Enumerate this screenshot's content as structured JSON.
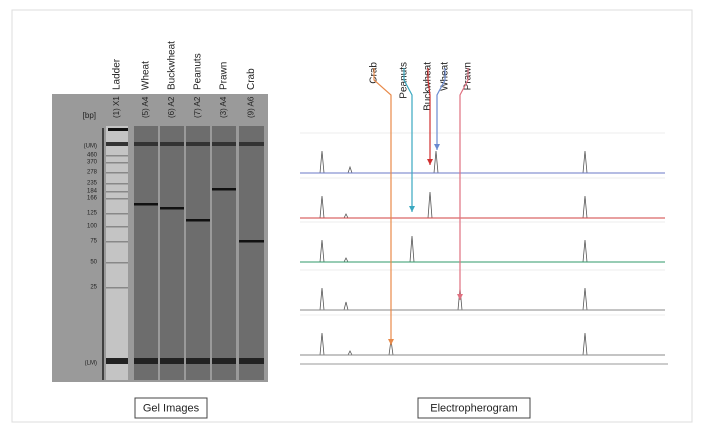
{
  "gel": {
    "unit": "[bp]",
    "lanes": [
      {
        "label": "Ladder",
        "id": "(1) X1"
      },
      {
        "label": "Wheat",
        "id": "(5) A4"
      },
      {
        "label": "Buckwheat",
        "id": "(6) A2"
      },
      {
        "label": "Peanuts",
        "id": "(7) A2"
      },
      {
        "label": "Prawn",
        "id": "(3) A4"
      },
      {
        "label": "Crab",
        "id": "(9) A6"
      }
    ],
    "sizes": [
      "(UM)",
      "460",
      "370",
      "278",
      "235",
      "184",
      "166",
      "125",
      "100",
      "75",
      "50",
      "25",
      "(LM)"
    ],
    "caption": "Gel Images"
  },
  "electropherogram": {
    "labels": [
      "Crab",
      "Peanuts",
      "Buckwheat",
      "Wheat",
      "Prawn"
    ],
    "caption": "Electropherogram"
  }
}
